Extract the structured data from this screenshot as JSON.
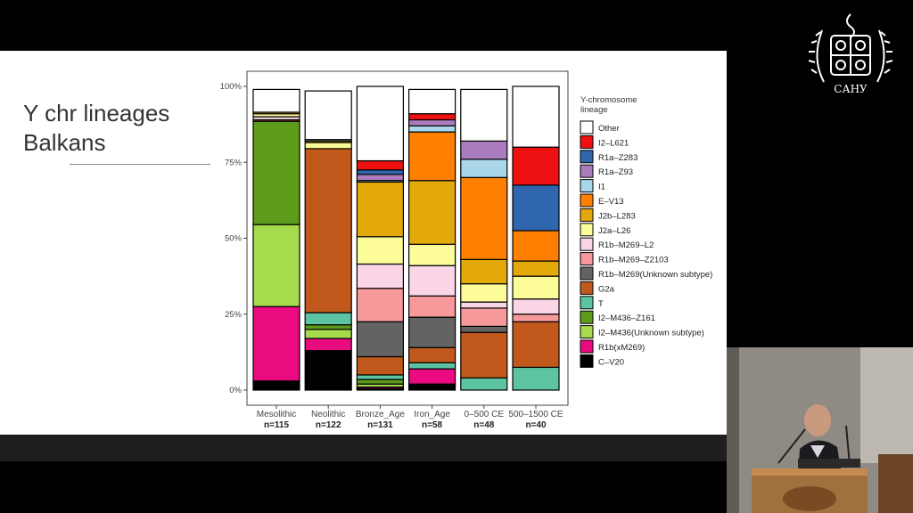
{
  "slide": {
    "title_lines": [
      "Y chr lineages",
      "Balkans"
    ]
  },
  "chart_data": {
    "type": "bar",
    "stacked": true,
    "normalized": true,
    "categories": [
      "Mesolithic",
      "Neolithic",
      "Bronze_Age",
      "Iron_Age",
      "0–500 CE",
      "500–1500 CE"
    ],
    "sample_sizes": [
      "n=115",
      "n=122",
      "n=131",
      "n=58",
      "n=48",
      "n=40"
    ],
    "ylim": [
      0,
      1
    ],
    "yticks": [
      {
        "value": 0,
        "label": "0%"
      },
      {
        "value": 0.25,
        "label": "25%"
      },
      {
        "value": 0.5,
        "label": "50%"
      },
      {
        "value": 0.75,
        "label": "75%"
      },
      {
        "value": 1,
        "label": "100%"
      }
    ],
    "legend": {
      "title_lines": [
        "Y-chromosome",
        "lineage"
      ],
      "placement": "right"
    },
    "series": [
      {
        "name": "Other",
        "color": "#ffffff",
        "values": [
          0.075,
          0.16,
          0.245,
          0.08,
          0.17,
          0.2
        ]
      },
      {
        "name": "I2–L621",
        "color": "#ee1111",
        "values": [
          0,
          0,
          0.03,
          0.02,
          0,
          0.125
        ]
      },
      {
        "name": "R1a–Z283",
        "color": "#2f66ad",
        "values": [
          0,
          0,
          0.015,
          0,
          0,
          0.15
        ]
      },
      {
        "name": "R1a–Z93",
        "color": "#aa7cbd",
        "values": [
          0,
          0,
          0.02,
          0.02,
          0.06,
          0
        ]
      },
      {
        "name": "I1",
        "color": "#a9d6e8",
        "values": [
          0,
          0.005,
          0.005,
          0.02,
          0.06,
          0
        ]
      },
      {
        "name": "E–V13",
        "color": "#ff8000",
        "values": [
          0,
          0,
          0,
          0.16,
          0.27,
          0.1
        ]
      },
      {
        "name": "J2b–L283",
        "color": "#e3a90a",
        "values": [
          0.005,
          0.005,
          0.18,
          0.21,
          0.08,
          0.05
        ]
      },
      {
        "name": "J2a–L26",
        "color": "#fcfc99",
        "values": [
          0.01,
          0.02,
          0.09,
          0.07,
          0.06,
          0.075
        ]
      },
      {
        "name": "R1b–M269–L2",
        "color": "#f9d5e5",
        "values": [
          0.01,
          0,
          0.08,
          0.1,
          0.02,
          0.05
        ]
      },
      {
        "name": "R1b–M269–Z2103",
        "color": "#f7999b",
        "values": [
          0,
          0,
          0.11,
          0.07,
          0.06,
          0.025
        ]
      },
      {
        "name": "R1b–M269(Unknown subtype)",
        "color": "#636363",
        "values": [
          0,
          0,
          0.115,
          0.1,
          0.02,
          0
        ]
      },
      {
        "name": "G2a",
        "color": "#c0591b",
        "values": [
          0.005,
          0.54,
          0.06,
          0.05,
          0.15,
          0.15
        ]
      },
      {
        "name": "T",
        "color": "#5cc4a2",
        "values": [
          0,
          0.04,
          0.015,
          0.02,
          0.04,
          0.075
        ]
      },
      {
        "name": "I2–M436–Z161",
        "color": "#5d9b1a",
        "values": [
          0.34,
          0.015,
          0.015,
          0,
          0,
          0
        ]
      },
      {
        "name": "I2–M436(Unknown subtype)",
        "color": "#a6db4d",
        "values": [
          0.27,
          0.03,
          0.01,
          0,
          0,
          0
        ]
      },
      {
        "name": "R1b(xM269)",
        "color": "#ea0b80",
        "values": [
          0.245,
          0.04,
          0.005,
          0.05,
          0,
          0
        ]
      },
      {
        "name": "C–V20",
        "color": "#000000",
        "values": [
          0.03,
          0.13,
          0.005,
          0.02,
          0,
          0
        ]
      }
    ]
  },
  "seal": {
    "text": "САНУ"
  }
}
